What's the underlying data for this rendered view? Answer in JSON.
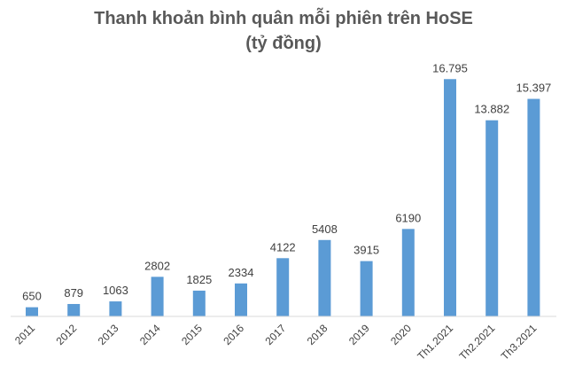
{
  "chart_data": {
    "type": "bar",
    "title": "Thanh khoản bình quân mỗi phiên trên HoSE",
    "subtitle": "(tỷ đồng)",
    "categories": [
      "2011",
      "2012",
      "2013",
      "2014",
      "2015",
      "2016",
      "2017",
      "2018",
      "2019",
      "2020",
      "Th1.2021",
      "Th2.2021",
      "Th3.2021"
    ],
    "values": [
      650,
      879,
      1063,
      2802,
      1825,
      2334,
      4122,
      5408,
      3915,
      6190,
      16795,
      13882,
      15397
    ],
    "data_labels": [
      "650",
      "879",
      "1063",
      "2802",
      "1825",
      "2334",
      "4122",
      "5408",
      "3915",
      "6190",
      "16.795",
      "13.882",
      "15.397"
    ],
    "ylim": [
      0,
      17000
    ],
    "grid": false,
    "bar_color": "#5b9bd5",
    "axis_color": "#d9d9d9"
  }
}
